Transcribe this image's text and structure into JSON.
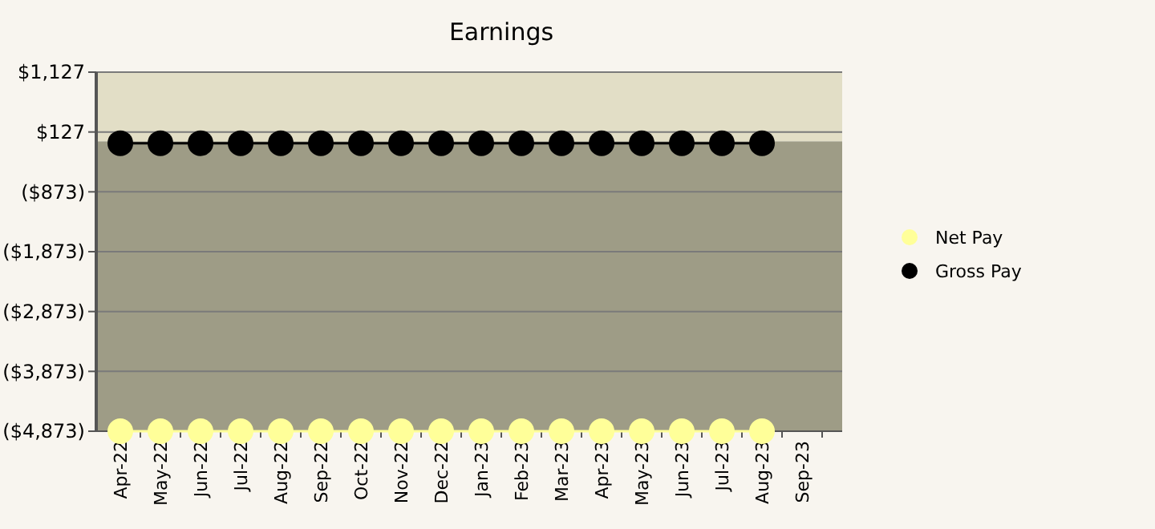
{
  "chart_data": {
    "type": "line",
    "title": "Earnings",
    "categories": [
      "Apr-22",
      "May-22",
      "Jun-22",
      "Jul-22",
      "Aug-22",
      "Sep-22",
      "Oct-22",
      "Nov-22",
      "Dec-22",
      "Jan-23",
      "Feb-23",
      "Mar-23",
      "Apr-23",
      "May-23",
      "Jun-23",
      "Jul-23",
      "Aug-23",
      "Sep-23"
    ],
    "series": [
      {
        "name": "Net Pay",
        "color": "#ffff99",
        "values": [
          -4873,
          -4873,
          -4873,
          -4873,
          -4873,
          -4873,
          -4873,
          -4873,
          -4873,
          -4873,
          -4873,
          -4873,
          -4873,
          -4873,
          -4873,
          -4873,
          -4873,
          null
        ]
      },
      {
        "name": "Gross Pay",
        "color": "#000000",
        "values": [
          -60,
          -60,
          -60,
          -60,
          -60,
          -60,
          -60,
          -60,
          -60,
          -60,
          -60,
          -60,
          -60,
          -60,
          -60,
          -60,
          -60,
          null
        ]
      }
    ],
    "ylim": [
      -4873,
      1127
    ],
    "yticks": [
      {
        "value": 1127,
        "label": "$1,127"
      },
      {
        "value": 127,
        "label": "$127"
      },
      {
        "value": -873,
        "label": "($873)"
      },
      {
        "value": -1873,
        "label": "($1,873)"
      },
      {
        "value": -2873,
        "label": "($2,873)"
      },
      {
        "value": -3873,
        "label": "($3,873)"
      },
      {
        "value": -4873,
        "label": "($4,873)"
      }
    ],
    "bands": [
      {
        "axis": "y",
        "from": -30,
        "to": 1127,
        "color": "#e2dec6"
      },
      {
        "axis": "y",
        "from": -4873,
        "to": -30,
        "color": "#9e9c86"
      }
    ],
    "grid": "y",
    "legend": "right",
    "marker": "circle",
    "line_style": "solid"
  }
}
